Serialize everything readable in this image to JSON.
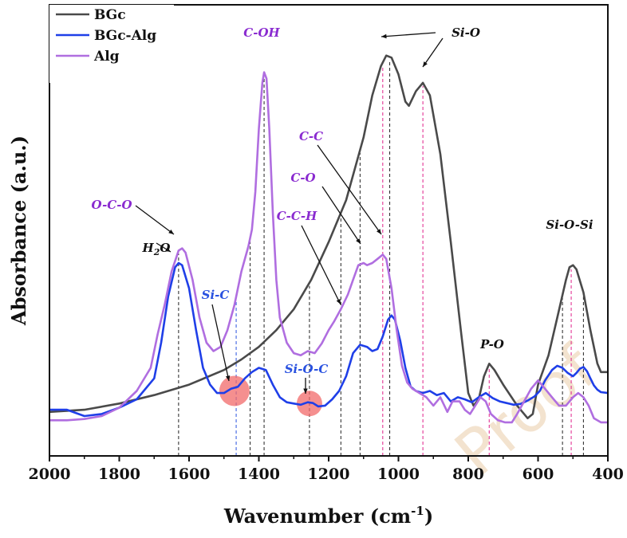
{
  "watermark": "Proof",
  "chart_data": {
    "type": "line",
    "title": "",
    "xlabel": "Wavenumber (cm",
    "xlabel_sup": "-1",
    "xlabel_close": ")",
    "ylabel": "Absorbance (a.u.)",
    "xlim": [
      2000,
      400
    ],
    "x_reversed": true,
    "ylim": [
      0,
      1
    ],
    "y_ticks_shown": false,
    "grid": false,
    "x_ticks": [
      2000,
      1800,
      1600,
      1400,
      1200,
      1000,
      800,
      600,
      400
    ],
    "legend_position": "top-left",
    "series": [
      {
        "name": "BGc",
        "color": "#4a4a4a",
        "points": [
          [
            2000,
            0.105
          ],
          [
            1900,
            0.11
          ],
          [
            1800,
            0.125
          ],
          [
            1700,
            0.145
          ],
          [
            1600,
            0.17
          ],
          [
            1500,
            0.205
          ],
          [
            1450,
            0.23
          ],
          [
            1400,
            0.26
          ],
          [
            1350,
            0.3
          ],
          [
            1300,
            0.35
          ],
          [
            1250,
            0.42
          ],
          [
            1200,
            0.51
          ],
          [
            1150,
            0.61
          ],
          [
            1100,
            0.76
          ],
          [
            1075,
            0.86
          ],
          [
            1050,
            0.93
          ],
          [
            1035,
            0.955
          ],
          [
            1020,
            0.95
          ],
          [
            1000,
            0.91
          ],
          [
            980,
            0.845
          ],
          [
            970,
            0.835
          ],
          [
            950,
            0.87
          ],
          [
            930,
            0.89
          ],
          [
            910,
            0.86
          ],
          [
            880,
            0.72
          ],
          [
            850,
            0.51
          ],
          [
            820,
            0.29
          ],
          [
            800,
            0.15
          ],
          [
            785,
            0.12
          ],
          [
            770,
            0.135
          ],
          [
            755,
            0.19
          ],
          [
            740,
            0.22
          ],
          [
            725,
            0.205
          ],
          [
            700,
            0.17
          ],
          [
            660,
            0.12
          ],
          [
            630,
            0.09
          ],
          [
            615,
            0.1
          ],
          [
            600,
            0.17
          ],
          [
            570,
            0.24
          ],
          [
            545,
            0.33
          ],
          [
            520,
            0.42
          ],
          [
            510,
            0.45
          ],
          [
            500,
            0.455
          ],
          [
            490,
            0.445
          ],
          [
            470,
            0.39
          ],
          [
            450,
            0.3
          ],
          [
            430,
            0.22
          ],
          [
            420,
            0.2
          ],
          [
            400,
            0.2
          ]
        ]
      },
      {
        "name": "BGc-Alg",
        "color": "#1f3fe8",
        "points": [
          [
            2000,
            0.11
          ],
          [
            1950,
            0.11
          ],
          [
            1900,
            0.095
          ],
          [
            1850,
            0.1
          ],
          [
            1800,
            0.115
          ],
          [
            1750,
            0.135
          ],
          [
            1700,
            0.185
          ],
          [
            1680,
            0.27
          ],
          [
            1660,
            0.38
          ],
          [
            1640,
            0.45
          ],
          [
            1630,
            0.46
          ],
          [
            1620,
            0.455
          ],
          [
            1600,
            0.4
          ],
          [
            1580,
            0.3
          ],
          [
            1560,
            0.21
          ],
          [
            1540,
            0.17
          ],
          [
            1520,
            0.15
          ],
          [
            1500,
            0.15
          ],
          [
            1480,
            0.16
          ],
          [
            1460,
            0.165
          ],
          [
            1440,
            0.185
          ],
          [
            1420,
            0.2
          ],
          [
            1400,
            0.21
          ],
          [
            1380,
            0.205
          ],
          [
            1360,
            0.17
          ],
          [
            1340,
            0.14
          ],
          [
            1320,
            0.128
          ],
          [
            1300,
            0.125
          ],
          [
            1280,
            0.122
          ],
          [
            1260,
            0.128
          ],
          [
            1245,
            0.126
          ],
          [
            1230,
            0.118
          ],
          [
            1210,
            0.12
          ],
          [
            1190,
            0.135
          ],
          [
            1170,
            0.155
          ],
          [
            1150,
            0.19
          ],
          [
            1130,
            0.245
          ],
          [
            1110,
            0.265
          ],
          [
            1090,
            0.26
          ],
          [
            1075,
            0.25
          ],
          [
            1060,
            0.255
          ],
          [
            1045,
            0.285
          ],
          [
            1030,
            0.325
          ],
          [
            1020,
            0.335
          ],
          [
            1010,
            0.325
          ],
          [
            995,
            0.275
          ],
          [
            980,
            0.21
          ],
          [
            965,
            0.165
          ],
          [
            950,
            0.155
          ],
          [
            930,
            0.15
          ],
          [
            910,
            0.155
          ],
          [
            890,
            0.145
          ],
          [
            870,
            0.15
          ],
          [
            850,
            0.13
          ],
          [
            830,
            0.14
          ],
          [
            810,
            0.135
          ],
          [
            790,
            0.128
          ],
          [
            770,
            0.14
          ],
          [
            750,
            0.15
          ],
          [
            730,
            0.138
          ],
          [
            710,
            0.13
          ],
          [
            690,
            0.126
          ],
          [
            670,
            0.122
          ],
          [
            650,
            0.124
          ],
          [
            630,
            0.132
          ],
          [
            610,
            0.142
          ],
          [
            595,
            0.155
          ],
          [
            580,
            0.18
          ],
          [
            560,
            0.205
          ],
          [
            545,
            0.215
          ],
          [
            530,
            0.21
          ],
          [
            515,
            0.198
          ],
          [
            500,
            0.19
          ],
          [
            490,
            0.198
          ],
          [
            480,
            0.208
          ],
          [
            470,
            0.212
          ],
          [
            460,
            0.202
          ],
          [
            450,
            0.185
          ],
          [
            440,
            0.168
          ],
          [
            430,
            0.158
          ],
          [
            420,
            0.152
          ],
          [
            400,
            0.15
          ]
        ]
      },
      {
        "name": "Alg",
        "color": "#b06ee0",
        "points": [
          [
            2000,
            0.085
          ],
          [
            1950,
            0.085
          ],
          [
            1900,
            0.088
          ],
          [
            1850,
            0.095
          ],
          [
            1800,
            0.115
          ],
          [
            1750,
            0.155
          ],
          [
            1710,
            0.21
          ],
          [
            1690,
            0.29
          ],
          [
            1670,
            0.36
          ],
          [
            1650,
            0.44
          ],
          [
            1630,
            0.49
          ],
          [
            1620,
            0.495
          ],
          [
            1610,
            0.485
          ],
          [
            1590,
            0.42
          ],
          [
            1570,
            0.33
          ],
          [
            1550,
            0.27
          ],
          [
            1530,
            0.25
          ],
          [
            1510,
            0.26
          ],
          [
            1490,
            0.3
          ],
          [
            1470,
            0.36
          ],
          [
            1450,
            0.44
          ],
          [
            1430,
            0.5
          ],
          [
            1420,
            0.54
          ],
          [
            1410,
            0.63
          ],
          [
            1400,
            0.78
          ],
          [
            1390,
            0.89
          ],
          [
            1385,
            0.915
          ],
          [
            1378,
            0.9
          ],
          [
            1370,
            0.78
          ],
          [
            1360,
            0.58
          ],
          [
            1350,
            0.42
          ],
          [
            1340,
            0.33
          ],
          [
            1320,
            0.27
          ],
          [
            1300,
            0.245
          ],
          [
            1280,
            0.24
          ],
          [
            1260,
            0.25
          ],
          [
            1240,
            0.245
          ],
          [
            1220,
            0.268
          ],
          [
            1200,
            0.3
          ],
          [
            1185,
            0.32
          ],
          [
            1165,
            0.35
          ],
          [
            1145,
            0.385
          ],
          [
            1130,
            0.42
          ],
          [
            1115,
            0.455
          ],
          [
            1100,
            0.46
          ],
          [
            1090,
            0.455
          ],
          [
            1075,
            0.46
          ],
          [
            1060,
            0.47
          ],
          [
            1045,
            0.48
          ],
          [
            1035,
            0.47
          ],
          [
            1020,
            0.4
          ],
          [
            1005,
            0.3
          ],
          [
            990,
            0.215
          ],
          [
            975,
            0.175
          ],
          [
            960,
            0.16
          ],
          [
            940,
            0.15
          ],
          [
            920,
            0.14
          ],
          [
            900,
            0.12
          ],
          [
            880,
            0.14
          ],
          [
            860,
            0.105
          ],
          [
            845,
            0.13
          ],
          [
            825,
            0.13
          ],
          [
            810,
            0.11
          ],
          [
            795,
            0.1
          ],
          [
            780,
            0.12
          ],
          [
            765,
            0.14
          ],
          [
            750,
            0.13
          ],
          [
            735,
            0.1
          ],
          [
            715,
            0.085
          ],
          [
            695,
            0.08
          ],
          [
            675,
            0.08
          ],
          [
            660,
            0.1
          ],
          [
            640,
            0.13
          ],
          [
            620,
            0.16
          ],
          [
            600,
            0.18
          ],
          [
            580,
            0.16
          ],
          [
            560,
            0.14
          ],
          [
            540,
            0.12
          ],
          [
            520,
            0.12
          ],
          [
            500,
            0.14
          ],
          [
            485,
            0.15
          ],
          [
            470,
            0.14
          ],
          [
            455,
            0.12
          ],
          [
            440,
            0.09
          ],
          [
            420,
            0.08
          ],
          [
            400,
            0.08
          ]
        ]
      }
    ],
    "annotations": [
      {
        "text": "C-OH",
        "color": "#8a2bd0"
      },
      {
        "text": "Si-O",
        "color": "#111111"
      },
      {
        "text": "O-C-O",
        "color": "#8a2bd0"
      },
      {
        "text": "H",
        "sub": "2",
        "tail": "O",
        "color": "#111111"
      },
      {
        "text": "Si-C",
        "color": "#2a52e0"
      },
      {
        "text": "Si-O-C",
        "color": "#2a52e0"
      },
      {
        "text": "C-C",
        "color": "#8a2bd0"
      },
      {
        "text": "C-O",
        "color": "#8a2bd0"
      },
      {
        "text": "C-C-H",
        "color": "#8a2bd0"
      },
      {
        "text": "P-O",
        "color": "#111111"
      },
      {
        "text": "Si-O-Si",
        "color": "#111111"
      }
    ],
    "marker_lines": [
      {
        "x": 1630,
        "color": "#222222"
      },
      {
        "x": 1465,
        "color": "#2a52e0"
      },
      {
        "x": 1425,
        "color": "#222222"
      },
      {
        "x": 1385,
        "color": "#222222"
      },
      {
        "x": 1255,
        "color": "#222222"
      },
      {
        "x": 1165,
        "color": "#222222"
      },
      {
        "x": 1110,
        "color": "#222222"
      },
      {
        "x": 1045,
        "color": "#e0208a"
      },
      {
        "x": 1025,
        "color": "#222222"
      },
      {
        "x": 930,
        "color": "#e0208a"
      },
      {
        "x": 740,
        "color": "#e0208a"
      },
      {
        "x": 530,
        "color": "#222222"
      },
      {
        "x": 505,
        "color": "#e0208a"
      },
      {
        "x": 470,
        "color": "#222222"
      }
    ],
    "highlight_circles": [
      {
        "x": 1470,
        "y": 0.155
      },
      {
        "x": 1255,
        "y": 0.125
      }
    ]
  }
}
